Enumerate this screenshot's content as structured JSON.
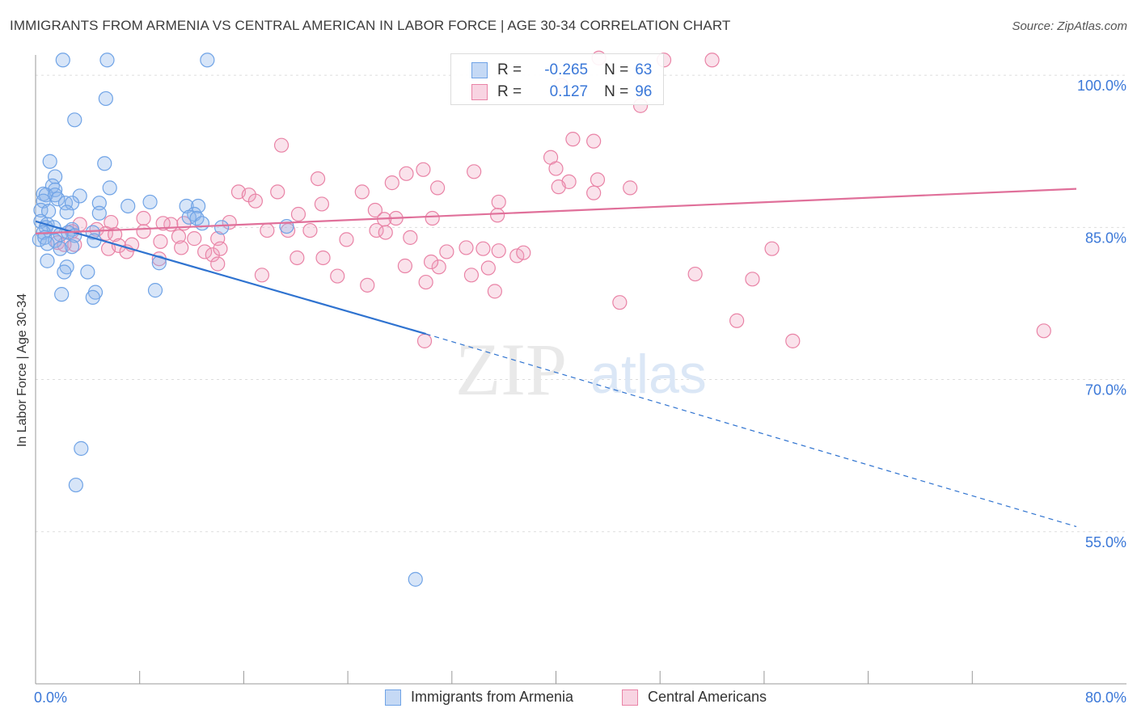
{
  "title": "IMMIGRANTS FROM ARMENIA VS CENTRAL AMERICAN IN LABOR FORCE | AGE 30-34 CORRELATION CHART",
  "source": "Source: ZipAtlas.com",
  "watermark": {
    "zip": "ZIP",
    "atlas": "atlas"
  },
  "colors": {
    "blue": "#6fa3e6",
    "blue_fill": "rgba(140,180,235,0.35)",
    "blue_line": "#2f73d0",
    "pink": "#e983a6",
    "pink_fill": "rgba(240,160,190,0.30)",
    "pink_line": "#e0709a",
    "tick_label": "#3b78d8",
    "grid": "#dddddd"
  },
  "stats": [
    {
      "swatch": "blue",
      "r_label": "R =",
      "r_value": "-0.265",
      "n_label": "N =",
      "n_value": "63"
    },
    {
      "swatch": "pink",
      "r_label": "R =",
      "r_value": "0.127",
      "n_label": "N =",
      "n_value": "96"
    }
  ],
  "legend": [
    {
      "swatch": "blue",
      "label": "Immigrants from Armenia"
    },
    {
      "swatch": "pink",
      "label": "Central Americans"
    }
  ],
  "chart_data": {
    "type": "scatter",
    "title": "IMMIGRANTS FROM ARMENIA VS CENTRAL AMERICAN IN LABOR FORCE | AGE 30-34 CORRELATION CHART",
    "xlabel": "",
    "ylabel": "In Labor Force | Age 30-34",
    "xlim": [
      0,
      80
    ],
    "ylim": [
      40,
      102
    ],
    "x_tick_labels": [
      {
        "value": 0,
        "label": "0.0%"
      },
      {
        "value": 80,
        "label": "80.0%"
      }
    ],
    "y_tick_labels": [
      {
        "value": 100,
        "label": "100.0%"
      },
      {
        "value": 85,
        "label": "85.0%"
      },
      {
        "value": 70,
        "label": "70.0%"
      },
      {
        "value": 55,
        "label": "55.0%"
      }
    ],
    "grid": true,
    "series": [
      {
        "name": "Immigrants from Armenia",
        "color": "blue",
        "trend": {
          "x0": 0,
          "y0": 85.6,
          "x1": 30,
          "y1": 74.5,
          "dash_to_x": 80,
          "dash_to_y": 55.5
        },
        "points": [
          [
            2.1,
            101.5
          ],
          [
            5.5,
            101.5
          ],
          [
            13.2,
            101.5
          ],
          [
            5.4,
            97.7
          ],
          [
            3.0,
            95.6
          ],
          [
            5.3,
            91.3
          ],
          [
            1.1,
            91.5
          ],
          [
            1.5,
            90.0
          ],
          [
            1.3,
            89.1
          ],
          [
            1.5,
            88.7
          ],
          [
            0.6,
            88.3
          ],
          [
            0.8,
            88.2
          ],
          [
            1.5,
            88.2
          ],
          [
            1.7,
            87.8
          ],
          [
            3.4,
            88.1
          ],
          [
            5.7,
            88.9
          ],
          [
            0.6,
            87.6
          ],
          [
            2.3,
            87.4
          ],
          [
            2.8,
            87.4
          ],
          [
            4.9,
            87.4
          ],
          [
            8.8,
            87.5
          ],
          [
            11.6,
            87.1
          ],
          [
            12.5,
            87.1
          ],
          [
            7.1,
            87.1
          ],
          [
            0.4,
            86.7
          ],
          [
            1.0,
            86.6
          ],
          [
            2.4,
            86.5
          ],
          [
            4.9,
            86.4
          ],
          [
            12.2,
            86.3
          ],
          [
            11.8,
            86.0
          ],
          [
            12.4,
            85.9
          ],
          [
            0.4,
            85.6
          ],
          [
            0.9,
            85.3
          ],
          [
            0.8,
            85.0
          ],
          [
            1.4,
            85.0
          ],
          [
            12.8,
            85.4
          ],
          [
            14.3,
            85.0
          ],
          [
            19.3,
            85.1
          ],
          [
            2.8,
            84.8
          ],
          [
            0.6,
            84.5
          ],
          [
            1.9,
            84.3
          ],
          [
            2.5,
            84.5
          ],
          [
            3.0,
            84.2
          ],
          [
            4.4,
            84.5
          ],
          [
            0.3,
            83.8
          ],
          [
            0.7,
            84.0
          ],
          [
            1.5,
            83.7
          ],
          [
            4.5,
            83.7
          ],
          [
            0.9,
            83.4
          ],
          [
            2.8,
            83.1
          ],
          [
            1.9,
            82.9
          ],
          [
            0.9,
            81.7
          ],
          [
            9.5,
            81.5
          ],
          [
            2.4,
            81.1
          ],
          [
            2.2,
            80.6
          ],
          [
            4.0,
            80.6
          ],
          [
            9.2,
            78.8
          ],
          [
            2.0,
            78.4
          ],
          [
            4.6,
            78.6
          ],
          [
            4.4,
            78.1
          ],
          [
            3.5,
            63.2
          ],
          [
            3.1,
            59.6
          ],
          [
            29.2,
            50.3
          ]
        ]
      },
      {
        "name": "Central Americans",
        "color": "pink",
        "trend": {
          "x0": 0,
          "y0": 84.4,
          "x1": 80,
          "y1": 88.8
        },
        "points": [
          [
            43.3,
            101.7
          ],
          [
            48.3,
            101.5
          ],
          [
            52.0,
            101.5
          ],
          [
            40.4,
            99.0
          ],
          [
            46.5,
            97.0
          ],
          [
            18.9,
            93.1
          ],
          [
            39.6,
            91.9
          ],
          [
            42.9,
            93.5
          ],
          [
            41.3,
            93.7
          ],
          [
            29.8,
            90.7
          ],
          [
            28.5,
            90.3
          ],
          [
            33.7,
            90.5
          ],
          [
            40.0,
            90.8
          ],
          [
            21.7,
            89.8
          ],
          [
            43.2,
            89.7
          ],
          [
            41.0,
            89.5
          ],
          [
            27.4,
            89.4
          ],
          [
            40.2,
            89.0
          ],
          [
            45.7,
            88.9
          ],
          [
            42.9,
            88.4
          ],
          [
            30.9,
            88.9
          ],
          [
            25.1,
            88.5
          ],
          [
            18.6,
            88.5
          ],
          [
            15.6,
            88.5
          ],
          [
            16.4,
            88.2
          ],
          [
            16.9,
            87.6
          ],
          [
            22.0,
            87.3
          ],
          [
            35.6,
            87.5
          ],
          [
            26.1,
            86.7
          ],
          [
            35.5,
            86.2
          ],
          [
            20.2,
            86.3
          ],
          [
            27.7,
            85.9
          ],
          [
            30.5,
            85.9
          ],
          [
            14.9,
            85.5
          ],
          [
            26.8,
            85.8
          ],
          [
            11.4,
            85.4
          ],
          [
            26.2,
            84.7
          ],
          [
            19.4,
            84.7
          ],
          [
            21.1,
            84.7
          ],
          [
            17.8,
            84.7
          ],
          [
            8.3,
            85.9
          ],
          [
            10.4,
            85.3
          ],
          [
            9.8,
            85.4
          ],
          [
            5.8,
            85.5
          ],
          [
            3.4,
            85.3
          ],
          [
            2.8,
            84.6
          ],
          [
            4.7,
            84.8
          ],
          [
            5.4,
            84.4
          ],
          [
            6.1,
            84.3
          ],
          [
            8.3,
            84.6
          ],
          [
            11.0,
            84.1
          ],
          [
            12.2,
            83.9
          ],
          [
            14.0,
            83.9
          ],
          [
            23.9,
            83.8
          ],
          [
            26.9,
            84.5
          ],
          [
            28.8,
            84.0
          ],
          [
            9.6,
            83.6
          ],
          [
            1.7,
            83.5
          ],
          [
            2.2,
            83.3
          ],
          [
            3.0,
            83.3
          ],
          [
            5.6,
            82.9
          ],
          [
            6.4,
            83.2
          ],
          [
            7.0,
            82.6
          ],
          [
            7.4,
            83.3
          ],
          [
            11.2,
            83.0
          ],
          [
            13.0,
            82.6
          ],
          [
            13.6,
            82.3
          ],
          [
            14.2,
            82.9
          ],
          [
            20.1,
            82.0
          ],
          [
            22.1,
            82.0
          ],
          [
            31.6,
            82.6
          ],
          [
            33.1,
            83.0
          ],
          [
            34.4,
            82.9
          ],
          [
            35.6,
            82.7
          ],
          [
            37.0,
            82.2
          ],
          [
            37.5,
            82.5
          ],
          [
            9.5,
            81.9
          ],
          [
            14.0,
            81.4
          ],
          [
            34.8,
            81.0
          ],
          [
            31.0,
            81.1
          ],
          [
            30.4,
            81.6
          ],
          [
            28.4,
            81.2
          ],
          [
            33.5,
            80.3
          ],
          [
            23.2,
            80.2
          ],
          [
            17.4,
            80.3
          ],
          [
            30.0,
            79.6
          ],
          [
            25.5,
            79.3
          ],
          [
            35.3,
            78.7
          ],
          [
            44.9,
            77.6
          ],
          [
            56.6,
            82.9
          ],
          [
            50.7,
            80.4
          ],
          [
            55.1,
            79.9
          ],
          [
            53.9,
            75.8
          ],
          [
            58.2,
            73.8
          ],
          [
            77.5,
            74.8
          ],
          [
            29.9,
            73.8
          ]
        ]
      }
    ]
  }
}
